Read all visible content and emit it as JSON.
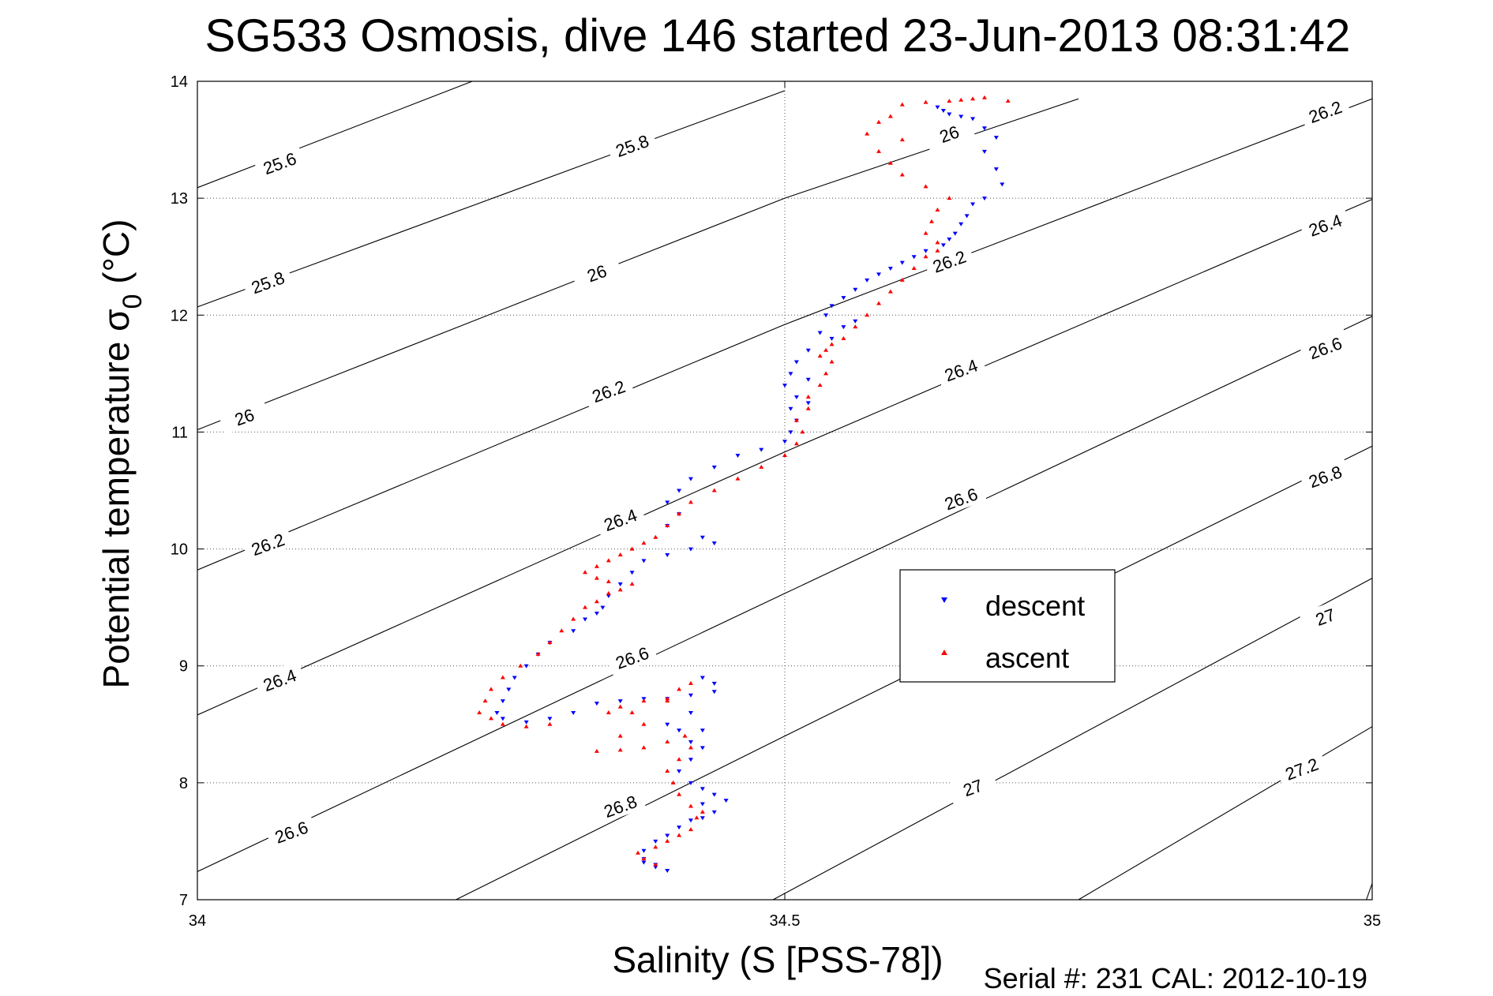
{
  "chart_data": {
    "type": "scatter",
    "title": "SG533 Osmosis, dive 146 started 23-Jun-2013 08:31:42",
    "xlabel": "Salinity (S [PSS-78])",
    "ylabel_main": "Potential temperature σ",
    "ylabel_sub": "0",
    "ylabel_unit": " (°C)",
    "xlim": [
      34,
      35
    ],
    "ylim": [
      7,
      14
    ],
    "x_ticks": [
      34,
      34.5,
      35
    ],
    "x_tick_labels": [
      "34",
      "34.5",
      "35"
    ],
    "y_ticks": [
      7,
      8,
      9,
      10,
      11,
      12,
      13,
      14
    ],
    "y_tick_labels": [
      "7",
      "8",
      "9",
      "10",
      "11",
      "12",
      "13",
      "14"
    ],
    "grid": true,
    "legend_position": "center-right",
    "footer": "Serial #: 231  CAL: 2012-10-19",
    "density_contours": [
      {
        "level": "25.6",
        "points": [
          [
            34,
            13.09
          ],
          [
            34.234,
            14.0
          ]
        ]
      },
      {
        "level": "25.8",
        "points": [
          [
            34,
            12.07
          ],
          [
            34.5,
            13.92
          ]
        ]
      },
      {
        "level": "26",
        "points": [
          [
            34,
            11.02
          ],
          [
            34.5,
            13.0
          ],
          [
            34.75,
            13.85
          ]
        ]
      },
      {
        "level": "26.2",
        "points": [
          [
            34,
            9.82
          ],
          [
            34.5,
            11.92
          ],
          [
            35,
            13.85
          ]
        ]
      },
      {
        "level": "26.4",
        "points": [
          [
            34,
            8.58
          ],
          [
            34.5,
            10.83
          ],
          [
            35,
            12.99
          ]
        ]
      },
      {
        "level": "26.6",
        "points": [
          [
            34,
            7.24
          ],
          [
            34.5,
            9.62
          ],
          [
            35,
            11.99
          ]
        ]
      },
      {
        "level": "26.8",
        "points": [
          [
            34.22,
            7.0
          ],
          [
            34.5,
            8.4
          ],
          [
            35,
            10.88
          ]
        ]
      },
      {
        "level": "27",
        "points": [
          [
            34.49,
            7.0
          ],
          [
            35,
            9.75
          ]
        ]
      },
      {
        "level": "27.2",
        "points": [
          [
            34.75,
            7.0
          ],
          [
            35,
            8.48
          ]
        ]
      },
      {
        "level": "27.4",
        "points": [
          [
            34.995,
            7.0
          ],
          [
            35,
            7.14
          ]
        ]
      }
    ],
    "contour_labels": [
      {
        "text": "25.6",
        "x": 34.07,
        "y": 13.3
      },
      {
        "text": "25.8",
        "x": 34.37,
        "y": 13.45
      },
      {
        "text": "26",
        "x": 34.64,
        "y": 13.55
      },
      {
        "text": "26.2",
        "x": 34.96,
        "y": 13.74
      },
      {
        "text": "25.8",
        "x": 34.06,
        "y": 12.28
      },
      {
        "text": "26",
        "x": 34.34,
        "y": 12.36
      },
      {
        "text": "26.2",
        "x": 34.64,
        "y": 12.46
      },
      {
        "text": "26.4",
        "x": 34.96,
        "y": 12.77
      },
      {
        "text": "26",
        "x": 34.04,
        "y": 11.13
      },
      {
        "text": "26.2",
        "x": 34.35,
        "y": 11.35
      },
      {
        "text": "26.4",
        "x": 34.65,
        "y": 11.53
      },
      {
        "text": "26.6",
        "x": 34.96,
        "y": 11.72
      },
      {
        "text": "26.2",
        "x": 34.06,
        "y": 10.04
      },
      {
        "text": "26.4",
        "x": 34.36,
        "y": 10.25
      },
      {
        "text": "26.6",
        "x": 34.65,
        "y": 10.43
      },
      {
        "text": "26.8",
        "x": 34.96,
        "y": 10.62
      },
      {
        "text": "26.4",
        "x": 34.07,
        "y": 8.88
      },
      {
        "text": "26.6",
        "x": 34.37,
        "y": 9.07
      },
      {
        "text": "27",
        "x": 34.96,
        "y": 9.42
      },
      {
        "text": "26.6",
        "x": 34.08,
        "y": 7.58
      },
      {
        "text": "26.8",
        "x": 34.36,
        "y": 7.8
      },
      {
        "text": "27",
        "x": 34.66,
        "y": 7.96
      },
      {
        "text": "27.2",
        "x": 34.94,
        "y": 8.12
      }
    ],
    "series": [
      {
        "name": "descent",
        "color": "#0000ff",
        "marker": "triangle-down",
        "points": [
          [
            34.63,
            13.78
          ],
          [
            34.635,
            13.75
          ],
          [
            34.64,
            13.72
          ],
          [
            34.65,
            13.7
          ],
          [
            34.66,
            13.68
          ],
          [
            34.67,
            13.6
          ],
          [
            34.68,
            13.52
          ],
          [
            34.67,
            13.4
          ],
          [
            34.68,
            13.25
          ],
          [
            34.685,
            13.12
          ],
          [
            34.67,
            13.0
          ],
          [
            34.66,
            12.95
          ],
          [
            34.655,
            12.85
          ],
          [
            34.65,
            12.78
          ],
          [
            34.645,
            12.7
          ],
          [
            34.64,
            12.65
          ],
          [
            34.635,
            12.6
          ],
          [
            34.62,
            12.55
          ],
          [
            34.61,
            12.5
          ],
          [
            34.6,
            12.45
          ],
          [
            34.59,
            12.4
          ],
          [
            34.58,
            12.35
          ],
          [
            34.57,
            12.3
          ],
          [
            34.56,
            12.22
          ],
          [
            34.55,
            12.15
          ],
          [
            34.54,
            12.08
          ],
          [
            34.535,
            12.0
          ],
          [
            34.56,
            11.95
          ],
          [
            34.55,
            11.9
          ],
          [
            34.53,
            11.85
          ],
          [
            34.54,
            11.8
          ],
          [
            34.52,
            11.7
          ],
          [
            34.51,
            11.6
          ],
          [
            34.505,
            11.5
          ],
          [
            34.52,
            11.45
          ],
          [
            34.5,
            11.4
          ],
          [
            34.51,
            11.3
          ],
          [
            34.52,
            11.25
          ],
          [
            34.505,
            11.2
          ],
          [
            34.51,
            11.1
          ],
          [
            34.505,
            11.0
          ],
          [
            34.5,
            10.92
          ],
          [
            34.48,
            10.85
          ],
          [
            34.46,
            10.8
          ],
          [
            34.44,
            10.7
          ],
          [
            34.42,
            10.6
          ],
          [
            34.41,
            10.5
          ],
          [
            34.4,
            10.4
          ],
          [
            34.41,
            10.3
          ],
          [
            34.4,
            10.2
          ],
          [
            34.43,
            10.1
          ],
          [
            34.44,
            10.05
          ],
          [
            34.42,
            10.0
          ],
          [
            34.4,
            9.95
          ],
          [
            34.38,
            9.9
          ],
          [
            34.37,
            9.8
          ],
          [
            34.36,
            9.7
          ],
          [
            34.35,
            9.6
          ],
          [
            34.345,
            9.5
          ],
          [
            34.34,
            9.45
          ],
          [
            34.33,
            9.4
          ],
          [
            34.32,
            9.3
          ],
          [
            34.3,
            9.2
          ],
          [
            34.29,
            9.1
          ],
          [
            34.28,
            9.0
          ],
          [
            34.27,
            8.9
          ],
          [
            34.265,
            8.8
          ],
          [
            34.26,
            8.7
          ],
          [
            34.255,
            8.6
          ],
          [
            34.26,
            8.55
          ],
          [
            34.28,
            8.52
          ],
          [
            34.3,
            8.55
          ],
          [
            34.32,
            8.6
          ],
          [
            34.34,
            8.68
          ],
          [
            34.36,
            8.7
          ],
          [
            34.38,
            8.72
          ],
          [
            34.4,
            8.72
          ],
          [
            34.42,
            8.75
          ],
          [
            34.44,
            8.85
          ],
          [
            34.43,
            8.9
          ],
          [
            34.44,
            8.78
          ],
          [
            34.42,
            8.6
          ],
          [
            34.4,
            8.5
          ],
          [
            34.41,
            8.45
          ],
          [
            34.43,
            8.45
          ],
          [
            34.42,
            8.35
          ],
          [
            34.43,
            8.3
          ],
          [
            34.42,
            8.2
          ],
          [
            34.41,
            8.1
          ],
          [
            34.42,
            8.0
          ],
          [
            34.43,
            7.95
          ],
          [
            34.44,
            7.9
          ],
          [
            34.43,
            7.82
          ],
          [
            34.45,
            7.85
          ],
          [
            34.44,
            7.75
          ],
          [
            34.43,
            7.7
          ],
          [
            34.42,
            7.68
          ],
          [
            34.41,
            7.62
          ],
          [
            34.4,
            7.55
          ],
          [
            34.39,
            7.5
          ],
          [
            34.38,
            7.42
          ],
          [
            34.38,
            7.35
          ],
          [
            34.39,
            7.28
          ],
          [
            34.4,
            7.25
          ],
          [
            34.39,
            7.3
          ],
          [
            34.38,
            7.32
          ]
        ]
      },
      {
        "name": "ascent",
        "color": "#ff0000",
        "marker": "triangle-up",
        "points": [
          [
            34.39,
            7.3
          ],
          [
            34.38,
            7.35
          ],
          [
            34.375,
            7.4
          ],
          [
            34.39,
            7.45
          ],
          [
            34.4,
            7.5
          ],
          [
            34.41,
            7.55
          ],
          [
            34.42,
            7.6
          ],
          [
            34.425,
            7.7
          ],
          [
            34.43,
            7.75
          ],
          [
            34.42,
            7.8
          ],
          [
            34.41,
            7.9
          ],
          [
            34.405,
            8.0
          ],
          [
            34.4,
            8.1
          ],
          [
            34.41,
            8.2
          ],
          [
            34.42,
            8.3
          ],
          [
            34.415,
            8.4
          ],
          [
            34.4,
            8.35
          ],
          [
            34.38,
            8.3
          ],
          [
            34.36,
            8.28
          ],
          [
            34.34,
            8.27
          ],
          [
            34.36,
            8.4
          ],
          [
            34.38,
            8.5
          ],
          [
            34.37,
            8.6
          ],
          [
            34.36,
            8.65
          ],
          [
            34.38,
            8.7
          ],
          [
            34.4,
            8.72
          ],
          [
            34.41,
            8.8
          ],
          [
            34.42,
            8.85
          ],
          [
            34.4,
            8.7
          ],
          [
            34.35,
            8.6
          ],
          [
            34.3,
            8.5
          ],
          [
            34.28,
            8.48
          ],
          [
            34.26,
            8.5
          ],
          [
            34.25,
            8.55
          ],
          [
            34.24,
            8.6
          ],
          [
            34.245,
            8.7
          ],
          [
            34.25,
            8.8
          ],
          [
            34.26,
            8.9
          ],
          [
            34.275,
            9.0
          ],
          [
            34.29,
            9.1
          ],
          [
            34.3,
            9.2
          ],
          [
            34.31,
            9.3
          ],
          [
            34.32,
            9.4
          ],
          [
            34.33,
            9.5
          ],
          [
            34.34,
            9.55
          ],
          [
            34.35,
            9.62
          ],
          [
            34.36,
            9.65
          ],
          [
            34.37,
            9.7
          ],
          [
            34.35,
            9.72
          ],
          [
            34.34,
            9.75
          ],
          [
            34.33,
            9.8
          ],
          [
            34.34,
            9.85
          ],
          [
            34.35,
            9.9
          ],
          [
            34.36,
            9.95
          ],
          [
            34.37,
            10.0
          ],
          [
            34.38,
            10.05
          ],
          [
            34.39,
            10.1
          ],
          [
            34.4,
            10.2
          ],
          [
            34.41,
            10.3
          ],
          [
            34.42,
            10.4
          ],
          [
            34.44,
            10.5
          ],
          [
            34.46,
            10.6
          ],
          [
            34.48,
            10.7
          ],
          [
            34.5,
            10.8
          ],
          [
            34.51,
            10.9
          ],
          [
            34.515,
            11.0
          ],
          [
            34.51,
            11.1
          ],
          [
            34.52,
            11.2
          ],
          [
            34.52,
            11.3
          ],
          [
            34.53,
            11.4
          ],
          [
            34.535,
            11.5
          ],
          [
            34.54,
            11.6
          ],
          [
            34.53,
            11.65
          ],
          [
            34.535,
            11.7
          ],
          [
            34.54,
            11.75
          ],
          [
            34.55,
            11.8
          ],
          [
            34.56,
            11.9
          ],
          [
            34.57,
            12.0
          ],
          [
            34.58,
            12.1
          ],
          [
            34.59,
            12.2
          ],
          [
            34.6,
            12.3
          ],
          [
            34.61,
            12.4
          ],
          [
            34.62,
            12.5
          ],
          [
            34.63,
            12.55
          ],
          [
            34.63,
            12.62
          ],
          [
            34.62,
            12.7
          ],
          [
            34.625,
            12.8
          ],
          [
            34.63,
            12.9
          ],
          [
            34.64,
            13.0
          ],
          [
            34.62,
            13.1
          ],
          [
            34.6,
            13.2
          ],
          [
            34.59,
            13.3
          ],
          [
            34.58,
            13.4
          ],
          [
            34.6,
            13.5
          ],
          [
            34.57,
            13.55
          ],
          [
            34.58,
            13.65
          ],
          [
            34.59,
            13.7
          ],
          [
            34.6,
            13.8
          ],
          [
            34.62,
            13.82
          ],
          [
            34.64,
            13.83
          ],
          [
            34.65,
            13.84
          ],
          [
            34.66,
            13.85
          ],
          [
            34.67,
            13.86
          ],
          [
            34.69,
            13.83
          ]
        ]
      }
    ]
  }
}
